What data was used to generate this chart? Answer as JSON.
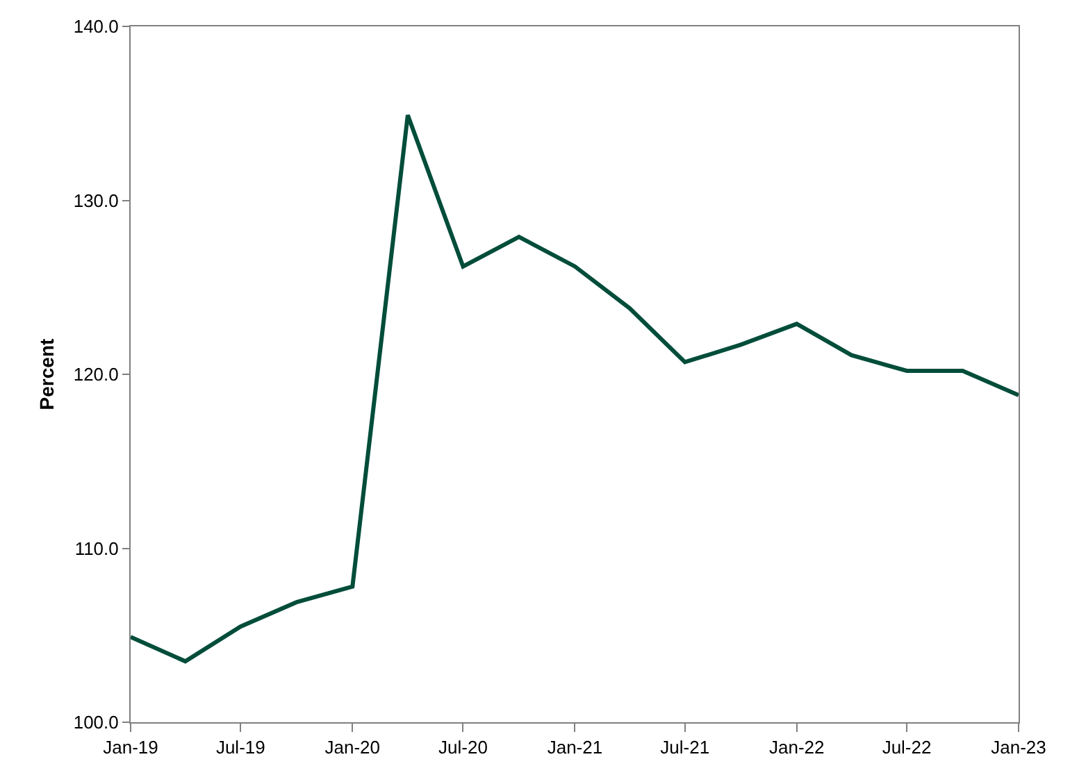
{
  "chart_data": {
    "type": "line",
    "ylabel": "Percent",
    "x": [
      "2019-01",
      "2019-04",
      "2019-07",
      "2019-10",
      "2020-01",
      "2020-04",
      "2020-07",
      "2020-10",
      "2021-01",
      "2021-04",
      "2021-07",
      "2021-10",
      "2022-01",
      "2022-04",
      "2022-07",
      "2022-10",
      "2023-01"
    ],
    "series": [
      {
        "color": "#004d3a",
        "values": [
          104.9,
          103.5,
          105.5,
          106.9,
          107.8,
          134.9,
          126.2,
          127.9,
          126.2,
          123.8,
          120.7,
          121.7,
          122.9,
          121.1,
          120.2,
          120.2,
          118.8
        ]
      }
    ],
    "xlim": [
      "2019-01",
      "2023-01"
    ],
    "xticks": [
      {
        "value": "2019-01",
        "label": "Jan-19"
      },
      {
        "value": "2019-07",
        "label": "Jul-19"
      },
      {
        "value": "2020-01",
        "label": "Jan-20"
      },
      {
        "value": "2020-07",
        "label": "Jul-20"
      },
      {
        "value": "2021-01",
        "label": "Jan-21"
      },
      {
        "value": "2021-07",
        "label": "Jul-21"
      },
      {
        "value": "2022-01",
        "label": "Jan-22"
      },
      {
        "value": "2022-07",
        "label": "Jul-22"
      },
      {
        "value": "2023-01",
        "label": "Jan-23"
      }
    ],
    "ylim": [
      100,
      140
    ],
    "yticks": [
      {
        "value": 100,
        "label": "100.0"
      },
      {
        "value": 110,
        "label": "110.0"
      },
      {
        "value": 120,
        "label": "120.0"
      },
      {
        "value": 130,
        "label": "130.0"
      },
      {
        "value": 140,
        "label": "140.0"
      }
    ],
    "marker": "none",
    "line_style": "solid"
  }
}
